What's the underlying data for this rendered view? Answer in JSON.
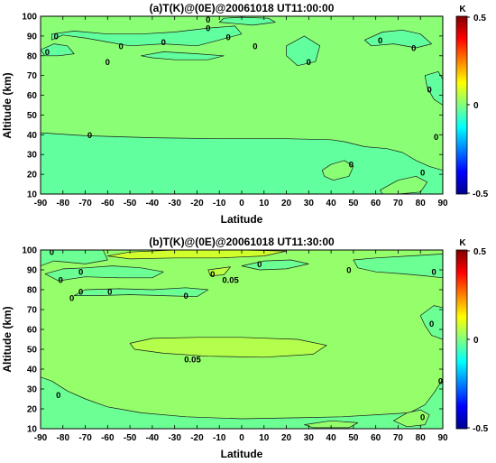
{
  "chart_data": [
    {
      "type": "heatmap",
      "title": "(a)T(K)@(0E)@20061018 UT11:00:00",
      "xlabel": "Latitude",
      "ylabel": "Altitude (km)",
      "xlim": [
        -90,
        90
      ],
      "ylim": [
        10,
        100
      ],
      "xticks": [
        "-90",
        "-80",
        "-70",
        "-60",
        "-50",
        "-40",
        "-30",
        "-20",
        "-10",
        "0",
        "10",
        "20",
        "30",
        "40",
        "50",
        "60",
        "70",
        "80",
        "90"
      ],
      "yticks": [
        "10",
        "20",
        "30",
        "40",
        "50",
        "60",
        "70",
        "80",
        "90",
        "100"
      ],
      "colorbar": {
        "unit": "K",
        "ticks": [
          "0.5",
          "0",
          "-0.5"
        ],
        "range": [
          -0.5,
          0.5
        ]
      },
      "background_value": 0.01,
      "regions": [
        {
          "value": -0.03,
          "points": [
            [
              -90,
              10
            ],
            [
              -90,
              41
            ],
            [
              -70,
              39.5
            ],
            [
              -40,
              38.5
            ],
            [
              -10,
              38
            ],
            [
              20,
              38
            ],
            [
              40,
              37.5
            ],
            [
              46,
              36.5
            ],
            [
              55,
              34
            ],
            [
              65,
              33
            ],
            [
              72,
              31
            ],
            [
              78,
              27
            ],
            [
              84,
              24
            ],
            [
              90,
              22
            ],
            [
              90,
              10
            ]
          ]
        },
        {
          "value": -0.03,
          "points": [
            [
              -85,
              88
            ],
            [
              -80,
              90.5
            ],
            [
              -70,
              89
            ],
            [
              -60,
              87
            ],
            [
              -50,
              85
            ],
            [
              -35,
              86
            ],
            [
              -20,
              85
            ],
            [
              -10,
              88
            ],
            [
              0,
              91
            ],
            [
              -3,
              95
            ],
            [
              -15,
              94
            ],
            [
              -30,
              92
            ],
            [
              -45,
              91
            ],
            [
              -60,
              91
            ],
            [
              -75,
              92.5
            ],
            [
              -85,
              91
            ]
          ]
        },
        {
          "value": -0.03,
          "points": [
            [
              -10,
              97
            ],
            [
              5,
              95.5
            ],
            [
              15,
              97
            ],
            [
              12,
              99
            ],
            [
              0,
              99.5
            ],
            [
              -8,
              99
            ]
          ]
        },
        {
          "value": -0.03,
          "points": [
            [
              -90,
              83
            ],
            [
              -84,
              86
            ],
            [
              -78,
              85
            ],
            [
              -75,
              81
            ],
            [
              -82,
              80
            ],
            [
              -88,
              80
            ]
          ]
        },
        {
          "value": -0.03,
          "points": [
            [
              -45,
              80
            ],
            [
              -35,
              82
            ],
            [
              -20,
              81
            ],
            [
              -8,
              80
            ],
            [
              -15,
              78
            ],
            [
              -30,
              78
            ],
            [
              -40,
              79
            ]
          ]
        },
        {
          "value": -0.03,
          "points": [
            [
              55,
              88
            ],
            [
              63,
              92
            ],
            [
              72,
              93
            ],
            [
              80,
              91
            ],
            [
              85,
              86
            ],
            [
              78,
              84
            ],
            [
              68,
              86
            ],
            [
              58,
              85
            ]
          ]
        },
        {
          "value": -0.03,
          "points": [
            [
              20,
              85
            ],
            [
              28,
              90
            ],
            [
              35,
              85
            ],
            [
              33,
              77
            ],
            [
              25,
              75
            ],
            [
              20,
              80
            ]
          ]
        },
        {
          "value": -0.03,
          "points": [
            [
              82,
              70
            ],
            [
              88,
              72
            ],
            [
              90,
              68
            ],
            [
              90,
              55
            ],
            [
              86,
              58
            ],
            [
              83,
              64
            ]
          ]
        },
        {
          "value": 0.01,
          "points": [
            [
              36,
              22
            ],
            [
              40,
              25
            ],
            [
              46,
              27
            ],
            [
              50,
              24
            ],
            [
              48,
              19
            ],
            [
              41,
              17
            ],
            [
              37,
              19
            ]
          ]
        },
        {
          "value": 0.01,
          "points": [
            [
              62,
              12
            ],
            [
              70,
              17
            ],
            [
              78,
              19
            ],
            [
              83,
              16
            ],
            [
              80,
              11
            ],
            [
              70,
              10
            ],
            [
              63,
              10
            ]
          ]
        }
      ],
      "contour_labels": [
        {
          "text": "0",
          "lat": -15,
          "alt": 98.5
        },
        {
          "text": "0",
          "lat": -15,
          "alt": 94
        },
        {
          "text": "0",
          "lat": -83,
          "alt": 90
        },
        {
          "text": "0",
          "lat": -54,
          "alt": 85
        },
        {
          "text": "0",
          "lat": -87,
          "alt": 82
        },
        {
          "text": "0",
          "lat": -35,
          "alt": 87
        },
        {
          "text": "0",
          "lat": -6,
          "alt": 89.5
        },
        {
          "text": "0",
          "lat": 6,
          "alt": 85
        },
        {
          "text": "0",
          "lat": 62,
          "alt": 88
        },
        {
          "text": "0",
          "lat": 77,
          "alt": 84
        },
        {
          "text": "0",
          "lat": -60,
          "alt": 77
        },
        {
          "text": "0",
          "lat": 30,
          "alt": 77
        },
        {
          "text": "0",
          "lat": 84,
          "alt": 63
        },
        {
          "text": "0",
          "lat": -68,
          "alt": 40
        },
        {
          "text": "0",
          "lat": 87,
          "alt": 39
        },
        {
          "text": "0",
          "lat": 49,
          "alt": 25
        },
        {
          "text": "0",
          "lat": 81,
          "alt": 21
        }
      ]
    },
    {
      "type": "heatmap",
      "title": "(b)T(K)@(0E)@20061018 UT11:30:00",
      "xlabel": "Latitude",
      "ylabel": "Altitude (km)",
      "xlim": [
        -90,
        90
      ],
      "ylim": [
        10,
        100
      ],
      "xticks": [
        "-90",
        "-80",
        "-70",
        "-60",
        "-50",
        "-40",
        "-30",
        "-20",
        "-10",
        "0",
        "10",
        "20",
        "30",
        "40",
        "50",
        "60",
        "70",
        "80",
        "90"
      ],
      "yticks": [
        "10",
        "20",
        "30",
        "40",
        "50",
        "60",
        "70",
        "80",
        "90",
        "100"
      ],
      "colorbar": {
        "unit": "K",
        "ticks": [
          "0.5",
          "0",
          "-0.5"
        ],
        "range": [
          -0.5,
          0.5
        ]
      },
      "background_value": 0.02,
      "regions": [
        {
          "value": 0.05,
          "points": [
            [
              -50,
              53
            ],
            [
              -40,
              55.5
            ],
            [
              -20,
              56
            ],
            [
              0,
              56
            ],
            [
              25,
              55
            ],
            [
              38,
              52
            ],
            [
              32,
              47.5
            ],
            [
              10,
              46
            ],
            [
              -15,
              46.5
            ],
            [
              -35,
              48
            ],
            [
              -48,
              50
            ]
          ]
        },
        {
          "value": 0.08,
          "points": [
            [
              -60,
              97
            ],
            [
              -50,
              99
            ],
            [
              -30,
              100
            ],
            [
              0,
              100
            ],
            [
              20,
              99.5
            ],
            [
              10,
              97
            ],
            [
              -10,
              96
            ],
            [
              -30,
              96
            ],
            [
              -50,
              95.5
            ]
          ]
        },
        {
          "value": 0.1,
          "points": [
            [
              -85,
              99.5
            ],
            [
              -75,
              100
            ],
            [
              -70,
              98.5
            ],
            [
              -78,
              97
            ],
            [
              -84,
              97.5
            ]
          ]
        },
        {
          "value": 0.06,
          "points": [
            [
              -15,
              90
            ],
            [
              -5,
              91.5
            ],
            [
              -8,
              87.5
            ],
            [
              -14,
              87
            ]
          ]
        },
        {
          "value": -0.02,
          "points": [
            [
              -90,
              100
            ],
            [
              -90,
              92
            ],
            [
              -84,
              94.5
            ],
            [
              -70,
              93
            ],
            [
              -60,
              95
            ],
            [
              -62,
              100
            ]
          ]
        },
        {
          "value": -0.02,
          "points": [
            [
              -88,
              88
            ],
            [
              -80,
              90.5
            ],
            [
              -70,
              91
            ],
            [
              -58,
              92
            ],
            [
              -45,
              91
            ],
            [
              -35,
              89
            ],
            [
              -40,
              86
            ],
            [
              -55,
              86
            ],
            [
              -70,
              86.5
            ],
            [
              -82,
              84.5
            ]
          ]
        },
        {
          "value": -0.02,
          "points": [
            [
              -75,
              77
            ],
            [
              -70,
              80
            ],
            [
              -55,
              80.5
            ],
            [
              -40,
              80
            ],
            [
              -25,
              81
            ],
            [
              -15,
              80
            ],
            [
              -20,
              76.5
            ],
            [
              -35,
              77
            ],
            [
              -50,
              77.5
            ],
            [
              -65,
              77
            ]
          ]
        },
        {
          "value": -0.02,
          "points": [
            [
              0,
              92
            ],
            [
              10,
              94.5
            ],
            [
              22,
              95
            ],
            [
              30,
              93
            ],
            [
              20,
              90.5
            ],
            [
              8,
              90
            ]
          ]
        },
        {
          "value": -0.02,
          "points": [
            [
              50,
              95
            ],
            [
              60,
              96
            ],
            [
              75,
              97
            ],
            [
              90,
              98
            ],
            [
              90,
              86
            ],
            [
              82,
              87
            ],
            [
              72,
              88
            ],
            [
              60,
              89
            ],
            [
              52,
              91
            ]
          ]
        },
        {
          "value": -0.02,
          "points": [
            [
              80,
              67
            ],
            [
              86,
              72
            ],
            [
              90,
              71
            ],
            [
              90,
              55
            ],
            [
              85,
              57
            ],
            [
              82,
              62
            ]
          ]
        },
        {
          "value": -0.02,
          "points": [
            [
              -90,
              10
            ],
            [
              -90,
              36
            ],
            [
              -85,
              34
            ],
            [
              -78,
              29
            ],
            [
              -70,
              25
            ],
            [
              -60,
              21
            ],
            [
              -45,
              18
            ],
            [
              -25,
              16
            ],
            [
              0,
              15
            ],
            [
              25,
              15.5
            ],
            [
              45,
              16
            ],
            [
              60,
              17
            ],
            [
              75,
              18
            ],
            [
              82,
              22
            ],
            [
              86,
              28
            ],
            [
              90,
              35
            ],
            [
              90,
              10
            ]
          ]
        },
        {
          "value": 0.02,
          "points": [
            [
              68,
              14
            ],
            [
              74,
              18
            ],
            [
              80,
              19.5
            ],
            [
              84,
              17
            ],
            [
              82,
              12
            ],
            [
              74,
              11
            ]
          ]
        },
        {
          "value": 0.02,
          "points": [
            [
              28,
              12
            ],
            [
              40,
              14
            ],
            [
              52,
              13
            ],
            [
              48,
              10.5
            ],
            [
              32,
              10.5
            ]
          ]
        }
      ],
      "contour_labels": [
        {
          "text": "0",
          "lat": -85,
          "alt": 99
        },
        {
          "text": "0",
          "lat": -72,
          "alt": 89
        },
        {
          "text": "0",
          "lat": -81,
          "alt": 85
        },
        {
          "text": "0",
          "lat": -13,
          "alt": 88
        },
        {
          "text": "0.05",
          "lat": -5,
          "alt": 85
        },
        {
          "text": "0",
          "lat": 8,
          "alt": 93
        },
        {
          "text": "0",
          "lat": 48,
          "alt": 90
        },
        {
          "text": "0",
          "lat": 86,
          "alt": 89
        },
        {
          "text": "0",
          "lat": -72,
          "alt": 79
        },
        {
          "text": "0",
          "lat": -76,
          "alt": 76
        },
        {
          "text": "0",
          "lat": -59,
          "alt": 79
        },
        {
          "text": "0",
          "lat": -25,
          "alt": 77
        },
        {
          "text": "0",
          "lat": 85,
          "alt": 63
        },
        {
          "text": "0.05",
          "lat": -22,
          "alt": 45
        },
        {
          "text": "0",
          "lat": 89,
          "alt": 34
        },
        {
          "text": "0",
          "lat": -82,
          "alt": 27
        },
        {
          "text": "0",
          "lat": 81,
          "alt": 16
        }
      ]
    }
  ]
}
